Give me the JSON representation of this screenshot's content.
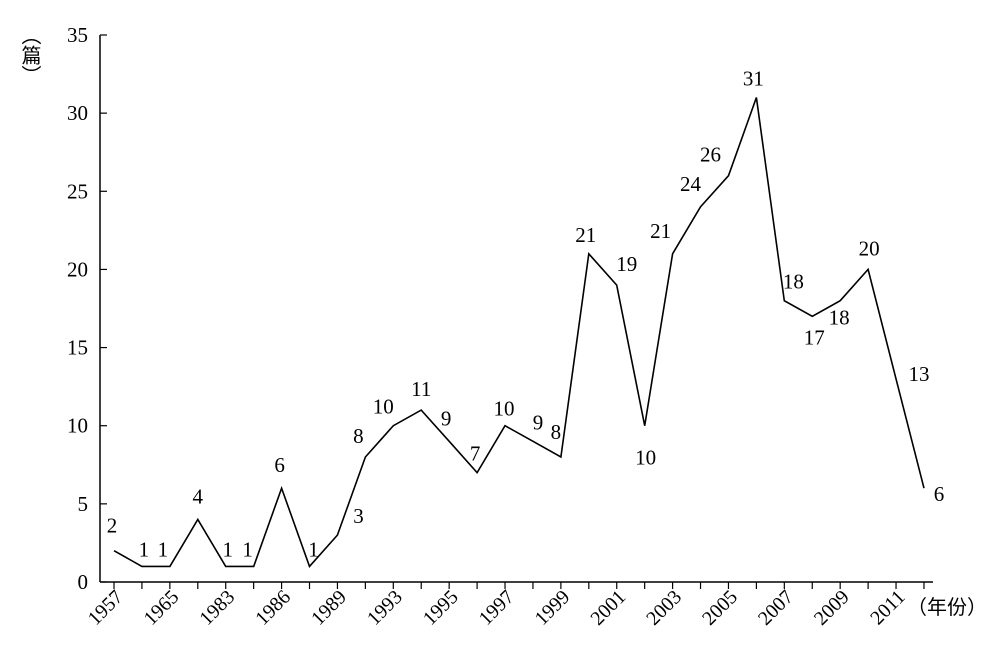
{
  "chart_data": {
    "type": "line",
    "title": "",
    "ylabel": "（篇）",
    "xlabel": "（年份）",
    "ylim": [
      0,
      35
    ],
    "yticks": [
      0,
      5,
      10,
      15,
      20,
      25,
      30,
      35
    ],
    "xtick_labels": [
      "1957",
      "1965",
      "1983",
      "1986",
      "1989",
      "1993",
      "1995",
      "1997",
      "1999",
      "2001",
      "2003",
      "2005",
      "2007",
      "2009",
      "2011"
    ],
    "grid": false,
    "legend": "none",
    "series": [
      {
        "values": [
          2,
          1,
          1,
          4,
          1,
          1,
          6,
          1,
          3,
          8,
          10,
          11,
          9,
          7,
          10,
          9,
          8,
          21,
          19,
          10,
          21,
          24,
          26,
          31,
          18,
          17,
          18,
          20,
          13,
          6
        ],
        "labels": [
          "2",
          "1",
          "1",
          "4",
          "1",
          "1",
          "6",
          "1",
          "3",
          "8",
          "10",
          "11",
          "9",
          "7",
          "10",
          "9",
          "8",
          "21",
          "19",
          "10",
          "21",
          "24",
          "26",
          "31",
          "18",
          "17",
          "18",
          "20",
          "13",
          "6"
        ]
      }
    ]
  }
}
